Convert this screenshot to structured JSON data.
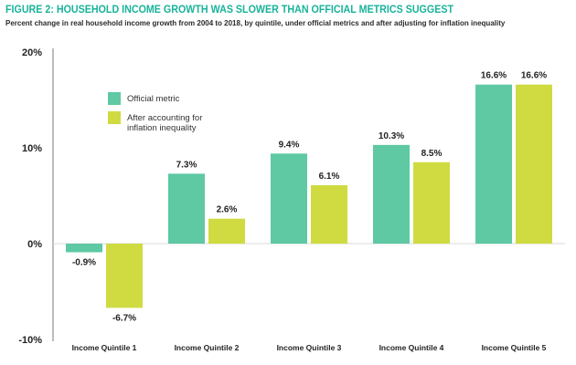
{
  "colors": {
    "title": "#18b39a",
    "official": "#5ec9a3",
    "adjusted": "#cfdb40",
    "axis": "#7a7a7a",
    "text": "#222222"
  },
  "chart_data": {
    "type": "bar",
    "title": "FIGURE 2: HOUSEHOLD INCOME GROWTH WAS SLOWER THAN OFFICIAL METRICS SUGGEST",
    "subtitle": "Percent change in real household income growth from 2004 to 2018, by quintile, under official metrics and after adjusting for inflation inequality",
    "xlabel": "",
    "ylabel": "",
    "categories": [
      "Income Quintile 1",
      "Income Quintile 2",
      "Income Quintile 3",
      "Income Quintile 4",
      "Income Quintile 5"
    ],
    "series": [
      {
        "name": "Official metric",
        "values": [
          -0.9,
          7.3,
          9.4,
          10.3,
          16.6
        ],
        "labels": [
          "-0.9%",
          "7.3%",
          "9.4%",
          "10.3%",
          "16.6%"
        ],
        "color": "#5ec9a3"
      },
      {
        "name": "After accounting for inflation inequality",
        "values": [
          -6.7,
          2.6,
          6.1,
          8.5,
          16.6
        ],
        "labels": [
          "-6.7%",
          "2.6%",
          "6.1%",
          "8.5%",
          "16.6%"
        ],
        "color": "#cfdb40"
      }
    ],
    "yticks": [
      20,
      10,
      0,
      -10
    ],
    "ytick_labels": [
      "20%",
      "10%",
      "0%",
      "-10%"
    ],
    "ylim": [
      -10,
      20
    ],
    "legend": {
      "position": "upper-left",
      "entries": [
        {
          "lines": [
            "Official metric"
          ],
          "color": "#5ec9a3"
        },
        {
          "lines": [
            "After accounting for",
            "inflation inequality"
          ],
          "color": "#cfdb40"
        }
      ]
    },
    "grid": false
  }
}
